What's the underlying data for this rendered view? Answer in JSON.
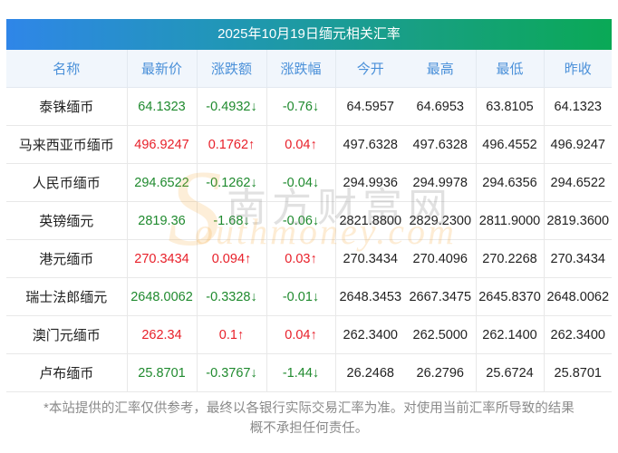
{
  "title": "2025年10月19日缅元相关汇率",
  "colors": {
    "up": "#e8202a",
    "down": "#1f8a2e",
    "header_text": "#4a90d9",
    "banner_gradient_start": "#2f86e8",
    "banner_gradient_end": "#0aa956"
  },
  "columns": [
    "名称",
    "最新价",
    "涨跌额",
    "涨跌幅",
    "今开",
    "最高",
    "最低",
    "昨收"
  ],
  "rows": [
    {
      "name": "泰铢缅币",
      "latest": "64.1323",
      "change": "-0.4932↓",
      "pct": "-0.76↓",
      "open": "64.5957",
      "high": "64.6953",
      "low": "63.8105",
      "prev": "64.1323",
      "dir": "down"
    },
    {
      "name": "马来西亚币缅币",
      "latest": "496.9247",
      "change": "0.1762↑",
      "pct": "0.04↑",
      "open": "497.6328",
      "high": "497.6328",
      "low": "496.4552",
      "prev": "496.9247",
      "dir": "up"
    },
    {
      "name": "人民币缅币",
      "latest": "294.6522",
      "change": "-0.1262↓",
      "pct": "-0.04↓",
      "open": "294.9936",
      "high": "294.9978",
      "low": "294.6356",
      "prev": "294.6522",
      "dir": "down"
    },
    {
      "name": "英镑缅元",
      "latest": "2819.36",
      "change": "-1.68↓",
      "pct": "-0.06↓",
      "open": "2821.8800",
      "high": "2829.2300",
      "low": "2811.9000",
      "prev": "2819.3600",
      "dir": "down"
    },
    {
      "name": "港元缅币",
      "latest": "270.3434",
      "change": "0.094↑",
      "pct": "0.03↑",
      "open": "270.3434",
      "high": "270.4096",
      "low": "270.2268",
      "prev": "270.3434",
      "dir": "up"
    },
    {
      "name": "瑞士法郎缅元",
      "latest": "2648.0062",
      "change": "-0.3328↓",
      "pct": "-0.01↓",
      "open": "2648.3453",
      "high": "2667.3475",
      "low": "2645.8370",
      "prev": "2648.0062",
      "dir": "down"
    },
    {
      "name": "澳门元缅币",
      "latest": "262.34",
      "change": "0.1↑",
      "pct": "0.04↑",
      "open": "262.3400",
      "high": "262.5000",
      "low": "262.1400",
      "prev": "262.3400",
      "dir": "up"
    },
    {
      "name": "卢布缅币",
      "latest": "25.8701",
      "change": "-0.3767↓",
      "pct": "-1.44↓",
      "open": "26.2468",
      "high": "26.2796",
      "low": "25.6724",
      "prev": "25.8701",
      "dir": "down"
    }
  ],
  "disclaimer": {
    "line1": "*本站提供的汇率仅供参考，最终以各银行实际交易汇率为准。对使用当前汇率所导致的结果",
    "line2": "概不承担任何责任。"
  },
  "watermark": {
    "cn": "南方财富网",
    "en": "outhmoney.com",
    "s": "S"
  }
}
